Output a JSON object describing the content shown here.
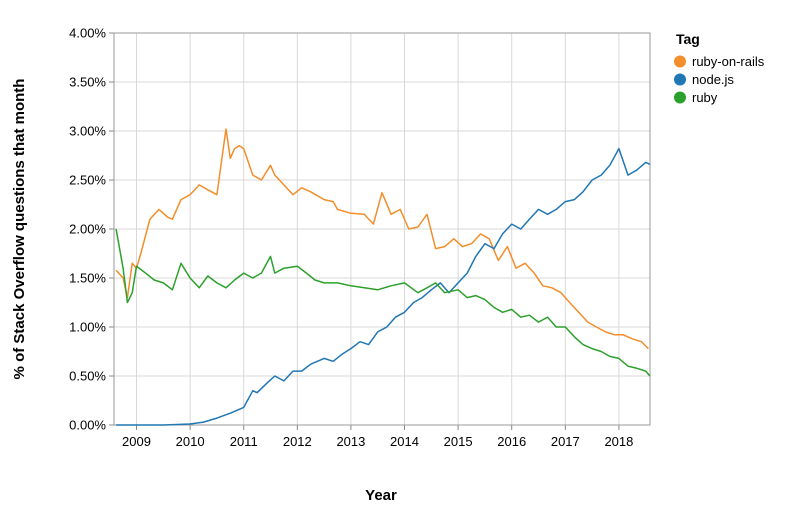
{
  "chart_data": {
    "type": "line",
    "title": "",
    "xlabel": "Year",
    "ylabel": "% of Stack Overflow questions that month",
    "xlim": [
      2008.58,
      2018.58
    ],
    "ylim": [
      0,
      4
    ],
    "x_ticks": [
      2009,
      2010,
      2011,
      2012,
      2013,
      2014,
      2015,
      2016,
      2017,
      2018
    ],
    "x_tick_labels": [
      "2009",
      "2010",
      "2011",
      "2012",
      "2013",
      "2014",
      "2015",
      "2016",
      "2017",
      "2018"
    ],
    "y_ticks": [
      0,
      0.5,
      1,
      1.5,
      2,
      2.5,
      3,
      3.5,
      4
    ],
    "y_tick_labels": [
      "0.00%",
      "0.50%",
      "1.00%",
      "1.50%",
      "2.00%",
      "2.50%",
      "3.00%",
      "3.50%",
      "4.00%"
    ],
    "grid": true,
    "legend": {
      "title": "Tag",
      "position": "right"
    },
    "series": [
      {
        "name": "ruby-on-rails",
        "color": "#f28e2b",
        "x": [
          2008.62,
          2008.75,
          2008.83,
          2008.92,
          2009.0,
          2009.08,
          2009.25,
          2009.42,
          2009.58,
          2009.67,
          2009.83,
          2010.0,
          2010.17,
          2010.33,
          2010.5,
          2010.67,
          2010.75,
          2010.83,
          2010.92,
          2011.0,
          2011.17,
          2011.33,
          2011.5,
          2011.58,
          2011.75,
          2011.92,
          2012.08,
          2012.25,
          2012.5,
          2012.67,
          2012.75,
          2013.0,
          2013.25,
          2013.42,
          2013.58,
          2013.75,
          2013.92,
          2014.08,
          2014.25,
          2014.42,
          2014.58,
          2014.75,
          2014.92,
          2015.08,
          2015.25,
          2015.42,
          2015.58,
          2015.75,
          2015.92,
          2016.08,
          2016.25,
          2016.42,
          2016.58,
          2016.75,
          2016.92,
          2017.08,
          2017.25,
          2017.42,
          2017.58,
          2017.75,
          2017.92,
          2018.08,
          2018.25,
          2018.42,
          2018.55
        ],
        "values": [
          1.58,
          1.5,
          1.3,
          1.65,
          1.6,
          1.75,
          2.1,
          2.2,
          2.12,
          2.1,
          2.3,
          2.35,
          2.45,
          2.4,
          2.35,
          3.02,
          2.72,
          2.82,
          2.85,
          2.82,
          2.55,
          2.5,
          2.65,
          2.55,
          2.45,
          2.35,
          2.42,
          2.38,
          2.3,
          2.28,
          2.2,
          2.16,
          2.15,
          2.05,
          2.37,
          2.15,
          2.2,
          2.0,
          2.02,
          2.15,
          1.8,
          1.82,
          1.9,
          1.82,
          1.85,
          1.95,
          1.9,
          1.68,
          1.82,
          1.6,
          1.65,
          1.55,
          1.42,
          1.4,
          1.35,
          1.25,
          1.15,
          1.05,
          1.0,
          0.95,
          0.92,
          0.92,
          0.88,
          0.85,
          0.78
        ]
      },
      {
        "name": "node.js",
        "color": "#1f77b4",
        "x": [
          2008.62,
          2009.0,
          2009.5,
          2010.0,
          2010.25,
          2010.5,
          2010.75,
          2011.0,
          2011.17,
          2011.25,
          2011.42,
          2011.58,
          2011.75,
          2011.92,
          2012.08,
          2012.25,
          2012.5,
          2012.67,
          2012.83,
          2013.0,
          2013.17,
          2013.33,
          2013.5,
          2013.67,
          2013.83,
          2014.0,
          2014.17,
          2014.33,
          2014.5,
          2014.67,
          2014.83,
          2015.0,
          2015.17,
          2015.33,
          2015.5,
          2015.67,
          2015.83,
          2016.0,
          2016.17,
          2016.33,
          2016.5,
          2016.67,
          2016.83,
          2017.0,
          2017.17,
          2017.33,
          2017.5,
          2017.67,
          2017.83,
          2018.0,
          2018.17,
          2018.33,
          2018.5,
          2018.58
        ],
        "values": [
          0.0,
          0.0,
          0.0,
          0.01,
          0.03,
          0.07,
          0.12,
          0.18,
          0.35,
          0.33,
          0.42,
          0.5,
          0.45,
          0.55,
          0.55,
          0.62,
          0.68,
          0.65,
          0.72,
          0.78,
          0.85,
          0.82,
          0.95,
          1.0,
          1.1,
          1.15,
          1.25,
          1.3,
          1.38,
          1.45,
          1.35,
          1.45,
          1.55,
          1.72,
          1.85,
          1.8,
          1.95,
          2.05,
          2.0,
          2.1,
          2.2,
          2.15,
          2.2,
          2.28,
          2.3,
          2.38,
          2.5,
          2.55,
          2.65,
          2.82,
          2.55,
          2.6,
          2.68,
          2.66
        ]
      },
      {
        "name": "ruby",
        "color": "#2ca02c",
        "x": [
          2008.62,
          2008.75,
          2008.83,
          2008.92,
          2009.0,
          2009.17,
          2009.33,
          2009.5,
          2009.67,
          2009.83,
          2010.0,
          2010.17,
          2010.33,
          2010.5,
          2010.67,
          2010.83,
          2011.0,
          2011.17,
          2011.33,
          2011.5,
          2011.58,
          2011.75,
          2012.0,
          2012.17,
          2012.33,
          2012.5,
          2012.75,
          2013.0,
          2013.25,
          2013.5,
          2013.75,
          2014.0,
          2014.25,
          2014.42,
          2014.58,
          2014.75,
          2015.0,
          2015.17,
          2015.33,
          2015.5,
          2015.67,
          2015.83,
          2016.0,
          2016.17,
          2016.33,
          2016.5,
          2016.67,
          2016.83,
          2017.0,
          2017.17,
          2017.33,
          2017.5,
          2017.67,
          2017.83,
          2018.0,
          2018.17,
          2018.33,
          2018.5,
          2018.58
        ],
        "values": [
          2.0,
          1.6,
          1.25,
          1.35,
          1.62,
          1.55,
          1.48,
          1.45,
          1.38,
          1.65,
          1.5,
          1.4,
          1.52,
          1.45,
          1.4,
          1.48,
          1.55,
          1.5,
          1.55,
          1.72,
          1.55,
          1.6,
          1.62,
          1.55,
          1.48,
          1.45,
          1.45,
          1.42,
          1.4,
          1.38,
          1.42,
          1.45,
          1.35,
          1.4,
          1.45,
          1.35,
          1.38,
          1.3,
          1.32,
          1.28,
          1.2,
          1.15,
          1.18,
          1.1,
          1.12,
          1.05,
          1.1,
          1.0,
          1.0,
          0.9,
          0.82,
          0.78,
          0.75,
          0.7,
          0.68,
          0.6,
          0.58,
          0.55,
          0.5
        ]
      }
    ]
  }
}
